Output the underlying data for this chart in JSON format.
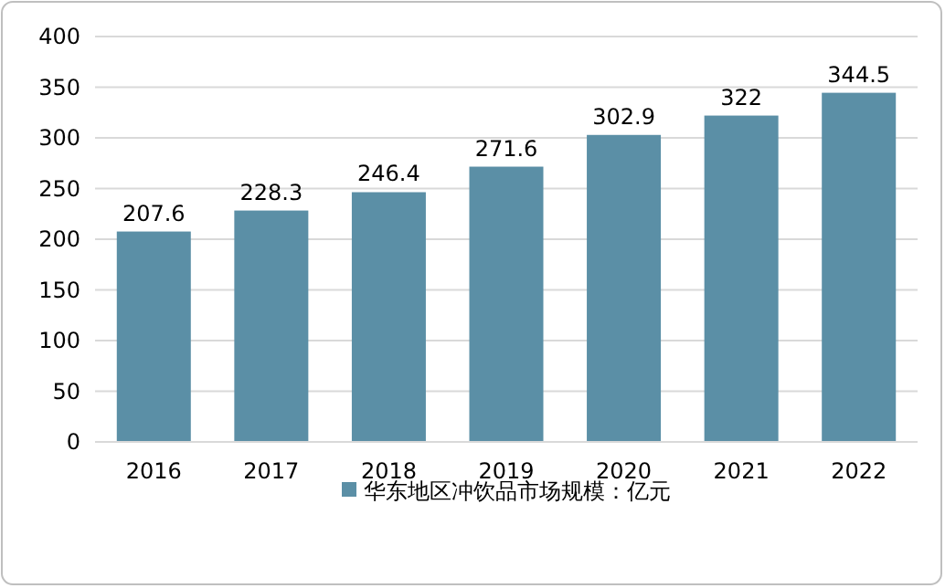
{
  "chart_data": {
    "type": "bar",
    "categories": [
      "2016",
      "2017",
      "2018",
      "2019",
      "2020",
      "2021",
      "2022"
    ],
    "series": [
      {
        "name": "华东地区冲饮品市场规模：亿元",
        "color": "#5b8fa6",
        "values": [
          207.6,
          228.3,
          246.4,
          271.6,
          302.9,
          322,
          344.5
        ]
      }
    ],
    "ylim": [
      0,
      400
    ],
    "yticks": [
      0,
      50,
      100,
      150,
      200,
      250,
      300,
      350,
      400
    ],
    "grid": "y",
    "legend": "bottom",
    "data_labels": true
  }
}
